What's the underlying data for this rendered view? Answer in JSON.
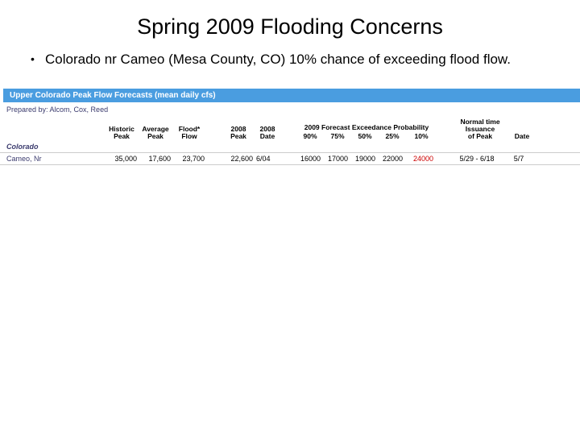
{
  "title": "Spring 2009 Flooding Concerns",
  "bullet": "Colorado nr Cameo (Mesa County, CO) 10% chance of exceeding flood flow.",
  "table": {
    "banner": "Upper Colorado Peak Flow Forecasts (mean daily cfs)",
    "prepared_label": "Prepared by:",
    "prepared_value": "Alcom, Cox, Reed",
    "headers": {
      "historic_peak": "Historic\nPeak",
      "average_peak": "Average\nPeak",
      "flood_flow": "Flood*\nFlow",
      "peak_2008": "2008\nPeak",
      "date_2008": "2008\nDate",
      "prob_title": "2009 Forecast Exceedance Probability",
      "p90": "90%",
      "p75": "75%",
      "p50": "50%",
      "p25": "25%",
      "p10": "10%",
      "normal_issuance": "Normal time Issuance\nof Peak",
      "date": "Date"
    },
    "group": "Colorado",
    "row": {
      "label": "Cameo, Nr",
      "historic_peak": "35,000",
      "average_peak": "17,600",
      "flood_flow": "23,700",
      "peak_2008": "22,600",
      "date_2008": "6/04",
      "p90": "16000",
      "p75": "17000",
      "p50": "19000",
      "p25": "22000",
      "p10": "24000",
      "normal_issuance": "5/29 - 6/18",
      "date": "5/7"
    }
  },
  "colors": {
    "banner_bg": "#4a9de0",
    "banner_text": "#ffffff",
    "accent_text": "#3b3b6e",
    "alert": "#cc0000",
    "divider": "#cccccc"
  }
}
